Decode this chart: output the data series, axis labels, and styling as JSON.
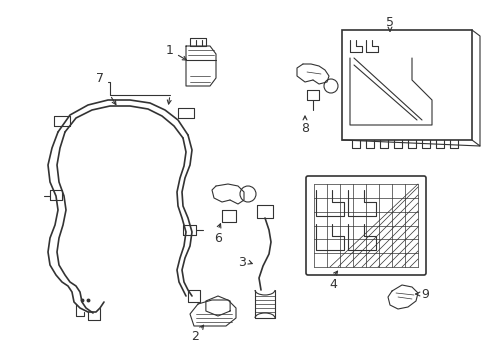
{
  "background_color": "#ffffff",
  "line_color": "#333333",
  "line_width": 0.8,
  "fig_width": 4.89,
  "fig_height": 3.6,
  "dpi": 100
}
